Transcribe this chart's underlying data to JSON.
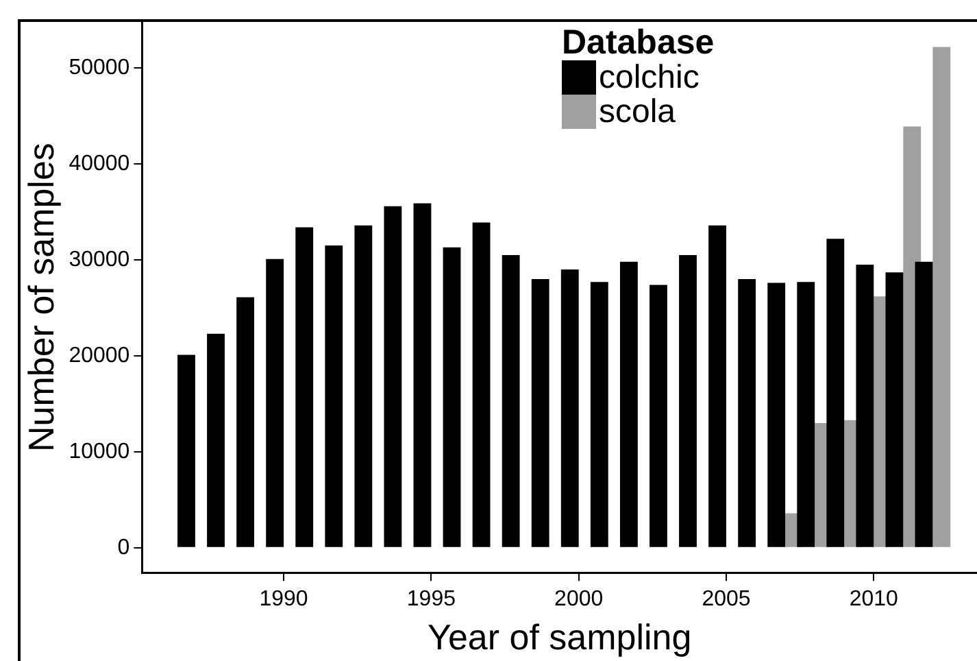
{
  "chart_data": {
    "type": "bar",
    "xlabel": "Year of sampling",
    "ylabel": "Number of samples",
    "legend_title": "Database",
    "legend": "top",
    "x": [
      1987,
      1988,
      1989,
      1990,
      1991,
      1992,
      1993,
      1994,
      1995,
      1996,
      1997,
      1998,
      1999,
      2000,
      2001,
      2002,
      2003,
      2004,
      2005,
      2006,
      2007,
      2008,
      2009,
      2010,
      2011,
      2012
    ],
    "series": [
      {
        "name": "colchic",
        "color": "#000000",
        "values": [
          20100,
          22300,
          26100,
          30100,
          33400,
          31500,
          33600,
          35600,
          35900,
          31300,
          33900,
          30500,
          28000,
          29000,
          27700,
          29800,
          27400,
          30500,
          33600,
          28000,
          27600,
          27700,
          32200,
          29500,
          28700,
          29800
        ]
      },
      {
        "name": "scola",
        "color": "#a0a0a0",
        "values": [
          null,
          null,
          null,
          null,
          null,
          null,
          null,
          null,
          null,
          null,
          null,
          null,
          null,
          null,
          null,
          null,
          null,
          null,
          null,
          null,
          3600,
          13000,
          13300,
          26200,
          43900,
          52200
        ]
      }
    ],
    "xlim": [
      1985.2,
      2013.5
    ],
    "xticks": [
      1990,
      1995,
      2000,
      2005,
      2010
    ],
    "ylim": [
      -2600,
      54800
    ],
    "yticks": [
      0,
      10000,
      20000,
      30000,
      40000,
      50000
    ],
    "grid": false
  }
}
